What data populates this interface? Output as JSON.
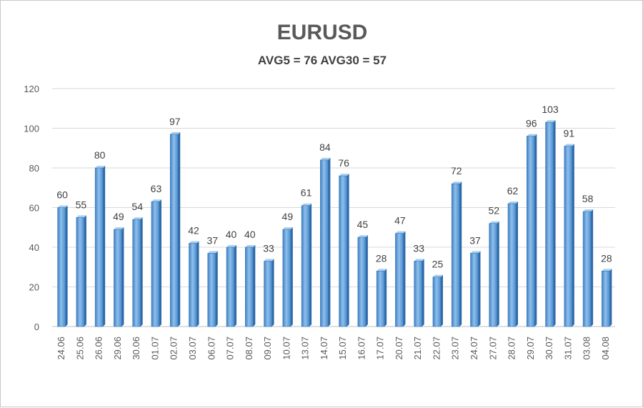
{
  "chart_data": {
    "type": "bar",
    "title": "EURUSD",
    "subtitle": "AVG5 = 76 AVG30 = 57",
    "categories": [
      "24.06",
      "25.06",
      "26.06",
      "29.06",
      "30.06",
      "01.07",
      "02.07",
      "03.07",
      "06.07",
      "07.07",
      "08.07",
      "09.07",
      "10.07",
      "13.07",
      "14.07",
      "15.07",
      "16.07",
      "17.07",
      "20.07",
      "21.07",
      "22.07",
      "23.07",
      "24.07",
      "27.07",
      "28.07",
      "29.07",
      "30.07",
      "31.07",
      "03.08",
      "04.08"
    ],
    "values": [
      60,
      55,
      80,
      49,
      54,
      63,
      97,
      42,
      37,
      40,
      40,
      33,
      49,
      61,
      84,
      76,
      45,
      28,
      47,
      33,
      25,
      72,
      37,
      52,
      62,
      96,
      103,
      91,
      58,
      28
    ],
    "ylim": [
      0,
      120
    ],
    "yticks": [
      0,
      20,
      40,
      60,
      80,
      100,
      120
    ],
    "grid": true,
    "bar_color": "#5b9bd5",
    "legend": "none"
  }
}
